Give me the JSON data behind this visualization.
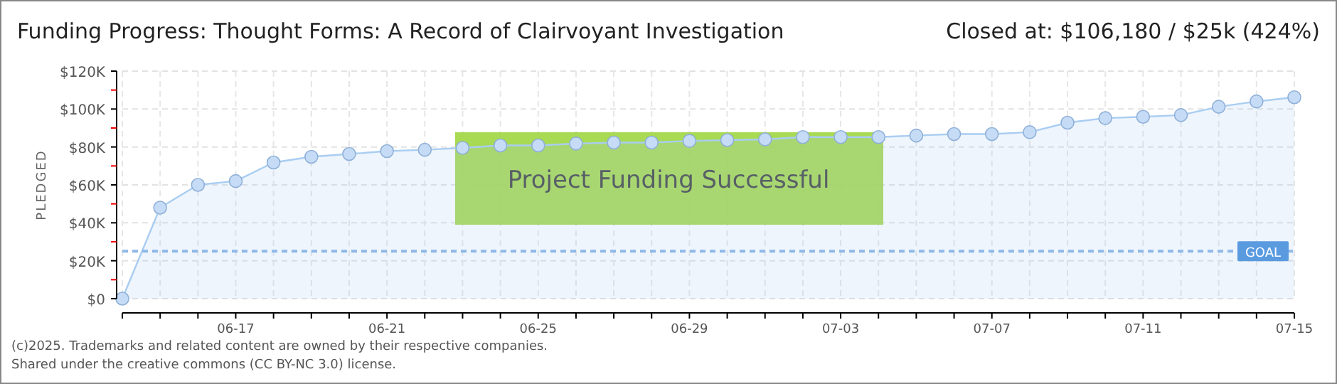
{
  "chart_data": {
    "type": "area",
    "title": "Funding Progress: Thought Forms: A Record of Clairvoyant Investigation",
    "subtitle": "Closed at: $106,180 / $25k (424%)",
    "ylabel": "PLEDGED",
    "annotations": [
      "Project Funding Successful",
      "(c)2025. Trademarks and related content are owned by their respective companies.",
      "Shared under the creative commons (CC BY-NC 3.0) license."
    ],
    "x": [
      "--06-14",
      "--06-15",
      "--06-16",
      "--06-17",
      "--06-18",
      "--06-19",
      "--06-20",
      "--06-21",
      "--06-22",
      "--06-23",
      "--06-24",
      "--06-25",
      "--06-26",
      "--06-27",
      "--06-28",
      "--06-29",
      "--06-30",
      "--07-01",
      "--07-02",
      "--07-03",
      "--07-04",
      "--07-05",
      "--07-06",
      "--07-07",
      "--07-08",
      "--07-09",
      "--07-10",
      "--07-11",
      "--07-12",
      "--07-13",
      "--07-14",
      "--07-15"
    ],
    "series": [
      {
        "color": "#a9cdf2",
        "values": [
          0,
          48,
          60,
          62,
          71.8,
          74.8,
          76.3,
          77.8,
          78.5,
          79.5,
          80.8,
          80.8,
          81.8,
          82.3,
          82.3,
          83.2,
          83.6,
          84,
          85.2,
          85.2,
          85.2,
          86,
          86.8,
          86.8,
          87.8,
          92.8,
          95.2,
          95.9,
          96.8,
          101.2,
          104,
          106.2
        ]
      }
    ],
    "xlim": [
      "--06-14",
      "--07-15"
    ],
    "xticks": [
      {
        "value": "--06-14",
        "label": null
      },
      {
        "value": "--06-15",
        "label": null
      },
      {
        "value": "--06-16",
        "label": null
      },
      {
        "value": "--06-17",
        "label": "06-17"
      },
      {
        "value": "--06-18",
        "label": null
      },
      {
        "value": "--06-19",
        "label": null
      },
      {
        "value": "--06-20",
        "label": null
      },
      {
        "value": "--06-21",
        "label": "06-21"
      },
      {
        "value": "--06-22",
        "label": null
      },
      {
        "value": "--06-23",
        "label": null
      },
      {
        "value": "--06-24",
        "label": null
      },
      {
        "value": "--06-25",
        "label": "06-25"
      },
      {
        "value": "--06-26",
        "label": null
      },
      {
        "value": "--06-27",
        "label": null
      },
      {
        "value": "--06-28",
        "label": null
      },
      {
        "value": "--06-29",
        "label": "06-29"
      },
      {
        "value": "--06-30",
        "label": null
      },
      {
        "value": "--07-01",
        "label": null
      },
      {
        "value": "--07-02",
        "label": null
      },
      {
        "value": "--07-03",
        "label": "07-03"
      },
      {
        "value": "--07-04",
        "label": null
      },
      {
        "value": "--07-05",
        "label": null
      },
      {
        "value": "--07-06",
        "label": null
      },
      {
        "value": "--07-07",
        "label": "07-07"
      },
      {
        "value": "--07-08",
        "label": null
      },
      {
        "value": "--07-09",
        "label": null
      },
      {
        "value": "--07-10",
        "label": null
      },
      {
        "value": "--07-11",
        "label": "07-11"
      },
      {
        "value": "--07-12",
        "label": null
      },
      {
        "value": "--07-13",
        "label": null
      },
      {
        "value": "--07-14",
        "label": null
      },
      {
        "value": "--07-15",
        "label": "07-15"
      }
    ],
    "ylim": [
      0,
      120
    ],
    "yticks": [
      {
        "value": 0,
        "label": "$0"
      },
      {
        "value": 10,
        "label": null
      },
      {
        "value": 20,
        "label": "$20K"
      },
      {
        "value": 30,
        "label": null
      },
      {
        "value": 40,
        "label": "$40K"
      },
      {
        "value": 50,
        "label": null
      },
      {
        "value": 60,
        "label": "$60K"
      },
      {
        "value": 70,
        "label": null
      },
      {
        "value": 80,
        "label": "$80K"
      },
      {
        "value": 90,
        "label": null
      },
      {
        "value": 100,
        "label": "$100K"
      },
      {
        "value": 110,
        "label": null
      },
      {
        "value": 120,
        "label": "$120K"
      }
    ],
    "ref_lines": [
      {
        "axis": "y",
        "value": 25,
        "label": "GOAL",
        "color": "#8fb8e8",
        "line_style": "dashed"
      }
    ],
    "grid": true,
    "marker": "circle",
    "line_style": "solid"
  }
}
